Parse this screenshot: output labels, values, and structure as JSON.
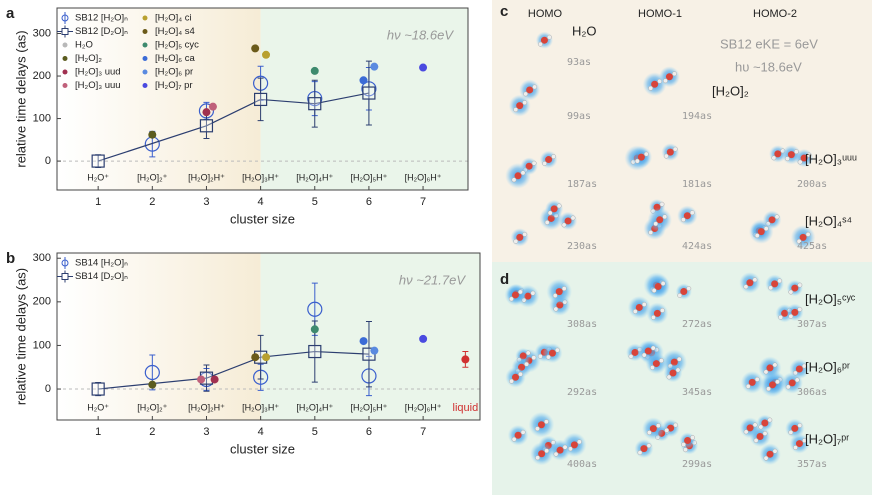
{
  "chart_data": [
    {
      "type": "scatter",
      "panel_label": "a",
      "xlabel": "cluster size",
      "ylabel": "relative time delays (as)",
      "xlim": [
        0.24,
        7.83
      ],
      "ylim": [
        -68,
        360
      ],
      "xticks": [
        1,
        2,
        3,
        4,
        5,
        6,
        7
      ],
      "yticks": [
        0,
        100,
        200,
        300
      ],
      "shade_split": 4,
      "annotation": "hν ~18.6eV",
      "cluster_labels": [
        {
          "x": 1,
          "text": "H₂O⁺"
        },
        {
          "x": 2,
          "text": "[H₂O]₂⁺"
        },
        {
          "x": 3,
          "text": "[H₂O]₂H⁺"
        },
        {
          "x": 4,
          "text": "[H₂O]₃H⁺"
        },
        {
          "x": 5,
          "text": "[H₂O]₄H⁺"
        },
        {
          "x": 6,
          "text": "[H₂O]₅H⁺"
        },
        {
          "x": 7,
          "text": "[H₂O]₆H⁺"
        }
      ],
      "series": [
        {
          "name": "SB12 [H₂O]ₙ",
          "color": "#3a5fcd",
          "marker": "circle",
          "x": [
            2,
            3,
            4,
            5,
            6
          ],
          "values": [
            40,
            118,
            183,
            147,
            170
          ],
          "errors": [
            30,
            20,
            40,
            40,
            50
          ]
        },
        {
          "name": "SB12 [D₂O]ₙ",
          "color": "#2c3e70",
          "marker": "square",
          "line": true,
          "x": [
            1,
            3,
            4,
            5,
            6
          ],
          "values": [
            0,
            83,
            145,
            135,
            160
          ],
          "errors": [
            15,
            30,
            50,
            55,
            75
          ]
        },
        {
          "name": "H₂O",
          "color": "#b8b8b8",
          "marker": "dot",
          "x": [],
          "values": []
        },
        {
          "name": "[H₂O]₂",
          "color": "#5b5b1e",
          "marker": "dot",
          "x": [
            2
          ],
          "values": [
            62
          ]
        },
        {
          "name": "[H₂O]₃ uud",
          "color": "#a03050",
          "marker": "dot",
          "x": [
            3
          ],
          "values": [
            115
          ]
        },
        {
          "name": "[H₂O]₃ uuu",
          "color": "#c0607a",
          "marker": "dot",
          "x": [
            3.12
          ],
          "values": [
            128
          ]
        },
        {
          "name": "[H₂O]₄ ci",
          "color": "#b8a030",
          "marker": "dot",
          "x": [
            4.1
          ],
          "values": [
            250
          ]
        },
        {
          "name": "[H₂O]₄ s4",
          "color": "#6b5a1a",
          "marker": "dot",
          "x": [
            3.9
          ],
          "values": [
            265
          ]
        },
        {
          "name": "[H₂O]₅ cyc",
          "color": "#3e8a6e",
          "marker": "dot",
          "x": [
            5
          ],
          "values": [
            212
          ]
        },
        {
          "name": "[H₂O]₆ ca",
          "color": "#3b6bd6",
          "marker": "dot",
          "x": [
            5.9
          ],
          "values": [
            190
          ]
        },
        {
          "name": "[H₂O]₆ pr",
          "color": "#5a8ae0",
          "marker": "dot",
          "x": [
            6.1
          ],
          "values": [
            222
          ]
        },
        {
          "name": "[H₂O]₇ pr",
          "color": "#4a4ae0",
          "marker": "dot",
          "x": [
            7
          ],
          "values": [
            220
          ]
        }
      ]
    },
    {
      "type": "scatter",
      "panel_label": "b",
      "xlabel": "cluster size",
      "ylabel": "relative time delays (as)",
      "xlim": [
        0.24,
        8.05
      ],
      "ylim": [
        -71,
        312
      ],
      "xticks": [
        1,
        2,
        3,
        4,
        5,
        6,
        7
      ],
      "yticks": [
        0,
        100,
        200,
        300
      ],
      "shade_split": 4,
      "annotation": "hν ~21.7eV",
      "liquid_label": "liquid",
      "cluster_labels": [
        {
          "x": 1,
          "text": "H₂O⁺"
        },
        {
          "x": 2,
          "text": "[H₂O]₂⁺"
        },
        {
          "x": 3,
          "text": "[H₂O]₂H⁺"
        },
        {
          "x": 4,
          "text": "[H₂O]₃H⁺"
        },
        {
          "x": 5,
          "text": "[H₂O]₄H⁺"
        },
        {
          "x": 6,
          "text": "[H₂O]₅H⁺"
        },
        {
          "x": 7,
          "text": "[H₂O]₆H⁺"
        }
      ],
      "series": [
        {
          "name": "SB14 [H₂O]ₙ",
          "color": "#3a5fcd",
          "marker": "circle",
          "x": [
            2,
            3,
            4,
            5,
            6
          ],
          "values": [
            38,
            22,
            27,
            183,
            30
          ],
          "errors": [
            40,
            25,
            30,
            60,
            45
          ]
        },
        {
          "name": "SB14 [D₂O]ₙ",
          "color": "#2c3e70",
          "marker": "square",
          "line": true,
          "x": [
            1,
            3,
            4,
            5,
            6
          ],
          "values": [
            0,
            25,
            73,
            86,
            80
          ],
          "errors": [
            15,
            30,
            50,
            70,
            75
          ]
        }
      ],
      "points": [
        {
          "x": 2,
          "value": 10,
          "color": "#5b5b1e"
        },
        {
          "x": 2.9,
          "value": 22,
          "color": "#c0607a"
        },
        {
          "x": 3.15,
          "value": 22,
          "color": "#a03050"
        },
        {
          "x": 3.9,
          "value": 73,
          "color": "#6b5a1a"
        },
        {
          "x": 4.1,
          "value": 73,
          "color": "#b8a030"
        },
        {
          "x": 5,
          "value": 137,
          "color": "#3e8a6e"
        },
        {
          "x": 5.9,
          "value": 110,
          "color": "#3b6bd6"
        },
        {
          "x": 6.1,
          "value": 88,
          "color": "#5a8ae0"
        },
        {
          "x": 7,
          "value": 115,
          "color": "#4a4ae0"
        },
        {
          "x": 7.78,
          "value": 68,
          "color": "#d03030",
          "error": 18
        }
      ]
    }
  ],
  "orbital_panels": {
    "c": {
      "letter": "c",
      "headers": [
        "HOMO",
        "HOMO-1",
        "HOMO-2"
      ],
      "note": "SB12 eKE = 6eV",
      "photon": "hυ ~18.6eV",
      "rows": [
        {
          "label": "H₂O",
          "times": [
            "93as"
          ]
        },
        {
          "label": "[H₂O]₂",
          "times": [
            "99as",
            "194as"
          ]
        },
        {
          "label": "[H₂O]₃ᵘᵘᵘ",
          "times": [
            "187as",
            "181as",
            "200as"
          ]
        },
        {
          "label": "[H₂O]₄ˢ⁴",
          "times": [
            "230as",
            "424as",
            "425as"
          ]
        }
      ]
    },
    "d": {
      "letter": "d",
      "rows": [
        {
          "label": "[H₂O]₅ᶜʸᶜ",
          "times": [
            "308as",
            "272as",
            "307as"
          ]
        },
        {
          "label": "[H₂O]₆ᵖʳ",
          "times": [
            "292as",
            "345as",
            "306as"
          ]
        },
        {
          "label": "[H₂O]₇ᵖʳ",
          "times": [
            "400as",
            "299as",
            "357as"
          ]
        }
      ]
    }
  }
}
